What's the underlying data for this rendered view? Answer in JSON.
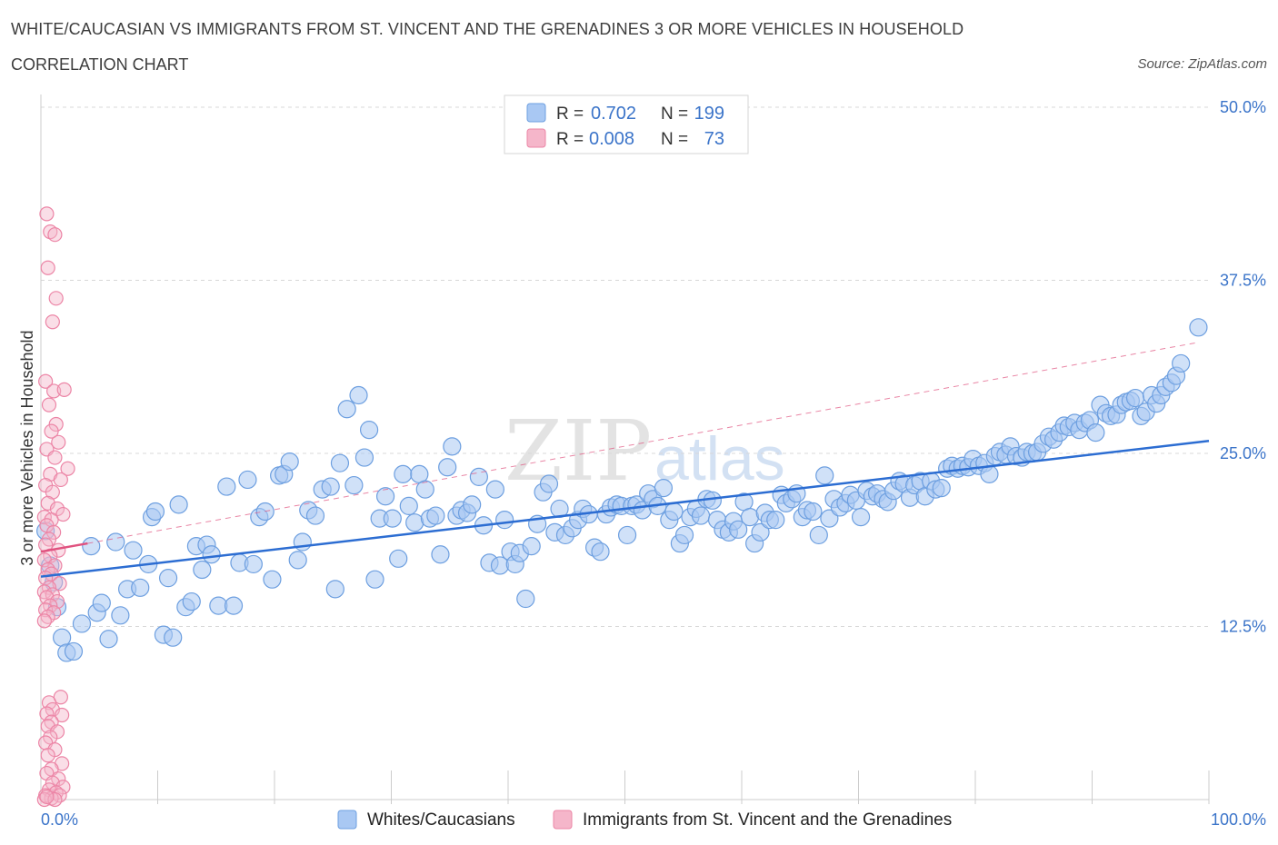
{
  "title": "WHITE/CAUCASIAN VS IMMIGRANTS FROM ST. VINCENT AND THE GRENADINES 3 OR MORE VEHICLES IN HOUSEHOLD",
  "subtitle": "CORRELATION CHART",
  "source": "Source: ZipAtlas.com",
  "watermark": {
    "zip": "ZIP",
    "atlas": "atlas"
  },
  "colors": {
    "blue_fill": "#a9c8f3",
    "blue_stroke": "#6d9fe0",
    "blue_line": "#2c6dd2",
    "pink_fill": "#f5b6ca",
    "pink_stroke": "#ec85a6",
    "pink_line": "#e0527f",
    "grid": "#d8d8d8",
    "tick_text": "#3b74c9"
  },
  "legend_top": {
    "rows": [
      {
        "r_label": "R =",
        "r_value": "0.702",
        "n_label": "N =",
        "n_value": "199"
      },
      {
        "r_label": "R =",
        "r_value": "0.008",
        "n_label": "N =",
        "n_value": "73"
      }
    ]
  },
  "chart_data": {
    "type": "scatter",
    "title": "WHITE/CAUCASIAN VS IMMIGRANTS FROM ST. VINCENT AND THE GRENADINES 3 OR MORE VEHICLES IN HOUSEHOLD",
    "xlabel": "",
    "ylabel": "3 or more Vehicles in Household",
    "xlim": [
      0,
      100
    ],
    "ylim": [
      0,
      50
    ],
    "x_tick_labels": [
      "0.0%",
      "100.0%"
    ],
    "y_ticks": [
      12.5,
      25.0,
      37.5,
      50.0
    ],
    "y_tick_labels": [
      "12.5%",
      "25.0%",
      "37.5%",
      "50.0%"
    ],
    "grid": "horizontal-dashed",
    "legend_position": "bottom-center",
    "series": [
      {
        "name": "Whites/Caucasians",
        "color": "#a9c8f3",
        "R": 0.702,
        "N": 199,
        "trend": {
          "x": [
            0,
            100
          ],
          "y": [
            16.1,
            25.9
          ]
        },
        "points": [
          [
            0.4,
            19.4
          ],
          [
            0.8,
            16.9
          ],
          [
            1.1,
            15.7
          ],
          [
            1.4,
            13.9
          ],
          [
            1.8,
            11.7
          ],
          [
            2.2,
            10.6
          ],
          [
            2.8,
            10.7
          ],
          [
            3.5,
            12.7
          ],
          [
            4.3,
            18.3
          ],
          [
            4.8,
            13.5
          ],
          [
            5.2,
            14.2
          ],
          [
            5.8,
            11.6
          ],
          [
            6.4,
            18.6
          ],
          [
            6.8,
            13.3
          ],
          [
            7.4,
            15.2
          ],
          [
            7.9,
            18.0
          ],
          [
            8.5,
            15.3
          ],
          [
            9.2,
            17.0
          ],
          [
            9.5,
            20.4
          ],
          [
            9.8,
            20.8
          ],
          [
            10.5,
            11.9
          ],
          [
            10.9,
            16.0
          ],
          [
            11.3,
            11.7
          ],
          [
            11.8,
            21.3
          ],
          [
            12.4,
            13.9
          ],
          [
            12.9,
            14.3
          ],
          [
            13.3,
            18.3
          ],
          [
            13.8,
            16.6
          ],
          [
            14.2,
            18.4
          ],
          [
            14.6,
            17.7
          ],
          [
            15.2,
            14.0
          ],
          [
            15.9,
            22.6
          ],
          [
            16.5,
            14.0
          ],
          [
            17.0,
            17.1
          ],
          [
            17.7,
            23.1
          ],
          [
            18.2,
            17.0
          ],
          [
            18.7,
            20.4
          ],
          [
            19.2,
            20.8
          ],
          [
            19.8,
            15.9
          ],
          [
            20.4,
            23.4
          ],
          [
            20.8,
            23.5
          ],
          [
            21.3,
            24.4
          ],
          [
            22.0,
            17.3
          ],
          [
            22.4,
            18.6
          ],
          [
            22.9,
            20.9
          ],
          [
            23.5,
            20.5
          ],
          [
            24.1,
            22.4
          ],
          [
            24.8,
            22.6
          ],
          [
            25.2,
            15.2
          ],
          [
            25.6,
            24.3
          ],
          [
            26.2,
            28.2
          ],
          [
            26.8,
            22.7
          ],
          [
            27.2,
            29.2
          ],
          [
            27.7,
            24.7
          ],
          [
            28.1,
            26.7
          ],
          [
            28.6,
            15.9
          ],
          [
            29.0,
            20.3
          ],
          [
            29.5,
            21.9
          ],
          [
            30.1,
            20.3
          ],
          [
            30.6,
            17.4
          ],
          [
            31.0,
            23.5
          ],
          [
            31.5,
            21.2
          ],
          [
            32.0,
            20.0
          ],
          [
            32.4,
            23.5
          ],
          [
            32.9,
            22.4
          ],
          [
            33.3,
            20.3
          ],
          [
            33.8,
            20.5
          ],
          [
            34.2,
            17.7
          ],
          [
            34.8,
            24.0
          ],
          [
            35.2,
            25.5
          ],
          [
            35.6,
            20.5
          ],
          [
            36.0,
            20.9
          ],
          [
            36.5,
            20.7
          ],
          [
            36.9,
            21.3
          ],
          [
            37.5,
            23.3
          ],
          [
            37.9,
            19.8
          ],
          [
            38.4,
            17.1
          ],
          [
            38.9,
            22.4
          ],
          [
            39.3,
            16.9
          ],
          [
            39.7,
            20.2
          ],
          [
            40.2,
            17.9
          ],
          [
            40.6,
            17.0
          ],
          [
            41.0,
            17.8
          ],
          [
            41.5,
            14.5
          ],
          [
            42.0,
            18.3
          ],
          [
            42.5,
            19.9
          ],
          [
            43.0,
            22.2
          ],
          [
            43.5,
            22.8
          ],
          [
            44.0,
            19.3
          ],
          [
            44.4,
            21.0
          ],
          [
            44.9,
            19.1
          ],
          [
            45.5,
            19.6
          ],
          [
            46.0,
            20.2
          ],
          [
            46.4,
            21.0
          ],
          [
            46.9,
            20.6
          ],
          [
            47.4,
            18.2
          ],
          [
            47.9,
            17.9
          ],
          [
            48.4,
            20.6
          ],
          [
            48.8,
            21.1
          ],
          [
            49.3,
            21.3
          ],
          [
            49.7,
            21.2
          ],
          [
            50.2,
            19.1
          ],
          [
            50.6,
            21.2
          ],
          [
            51.0,
            21.3
          ],
          [
            51.5,
            20.9
          ],
          [
            52.0,
            22.1
          ],
          [
            52.4,
            21.7
          ],
          [
            52.8,
            21.2
          ],
          [
            53.3,
            22.5
          ],
          [
            53.8,
            20.2
          ],
          [
            54.2,
            20.8
          ],
          [
            54.7,
            18.5
          ],
          [
            55.1,
            19.1
          ],
          [
            55.6,
            20.4
          ],
          [
            56.1,
            21.0
          ],
          [
            56.5,
            20.5
          ],
          [
            57.0,
            21.7
          ],
          [
            57.5,
            21.6
          ],
          [
            57.9,
            20.2
          ],
          [
            58.4,
            19.5
          ],
          [
            58.9,
            19.3
          ],
          [
            59.3,
            20.1
          ],
          [
            59.7,
            19.5
          ],
          [
            60.2,
            21.5
          ],
          [
            60.7,
            20.4
          ],
          [
            61.1,
            18.5
          ],
          [
            61.6,
            19.3
          ],
          [
            62.0,
            20.7
          ],
          [
            62.4,
            20.2
          ],
          [
            62.9,
            20.2
          ],
          [
            63.4,
            22.0
          ],
          [
            63.8,
            21.4
          ],
          [
            64.3,
            21.7
          ],
          [
            64.7,
            22.1
          ],
          [
            65.2,
            20.4
          ],
          [
            65.6,
            20.9
          ],
          [
            66.1,
            20.8
          ],
          [
            66.6,
            19.1
          ],
          [
            67.1,
            23.4
          ],
          [
            67.5,
            20.3
          ],
          [
            67.9,
            21.7
          ],
          [
            68.4,
            21.1
          ],
          [
            68.9,
            21.4
          ],
          [
            69.3,
            22.0
          ],
          [
            69.8,
            21.6
          ],
          [
            70.2,
            20.4
          ],
          [
            70.7,
            22.3
          ],
          [
            71.2,
            21.9
          ],
          [
            71.6,
            22.1
          ],
          [
            72.1,
            21.7
          ],
          [
            72.5,
            21.5
          ],
          [
            73.0,
            22.3
          ],
          [
            73.5,
            23.0
          ],
          [
            73.9,
            22.8
          ],
          [
            74.4,
            21.8
          ],
          [
            74.8,
            22.7
          ],
          [
            75.3,
            23.0
          ],
          [
            75.7,
            21.9
          ],
          [
            76.2,
            23.0
          ],
          [
            76.6,
            22.4
          ],
          [
            77.1,
            22.5
          ],
          [
            77.6,
            23.9
          ],
          [
            78.0,
            24.1
          ],
          [
            78.5,
            23.9
          ],
          [
            78.9,
            24.1
          ],
          [
            79.4,
            24.0
          ],
          [
            79.8,
            24.6
          ],
          [
            80.3,
            24.1
          ],
          [
            80.8,
            24.3
          ],
          [
            81.2,
            23.5
          ],
          [
            81.7,
            24.8
          ],
          [
            82.1,
            25.1
          ],
          [
            82.6,
            24.9
          ],
          [
            83.0,
            25.5
          ],
          [
            83.5,
            24.8
          ],
          [
            84.0,
            24.7
          ],
          [
            84.4,
            25.1
          ],
          [
            84.9,
            25.0
          ],
          [
            85.3,
            25.1
          ],
          [
            85.8,
            25.7
          ],
          [
            86.3,
            26.2
          ],
          [
            86.7,
            26.0
          ],
          [
            87.2,
            26.5
          ],
          [
            87.6,
            27.0
          ],
          [
            88.0,
            26.9
          ],
          [
            88.5,
            27.2
          ],
          [
            88.9,
            26.7
          ],
          [
            89.4,
            27.2
          ],
          [
            89.8,
            27.4
          ],
          [
            90.3,
            26.5
          ],
          [
            90.7,
            28.5
          ],
          [
            91.2,
            27.9
          ],
          [
            91.6,
            27.7
          ],
          [
            92.1,
            27.8
          ],
          [
            92.5,
            28.5
          ],
          [
            92.9,
            28.7
          ],
          [
            93.3,
            28.8
          ],
          [
            93.7,
            29.0
          ],
          [
            94.2,
            27.7
          ],
          [
            94.6,
            28.0
          ],
          [
            95.1,
            29.2
          ],
          [
            95.5,
            28.6
          ],
          [
            95.9,
            29.2
          ],
          [
            96.3,
            29.8
          ],
          [
            96.8,
            30.1
          ],
          [
            97.2,
            30.6
          ],
          [
            97.6,
            31.5
          ],
          [
            99.1,
            34.1
          ]
        ]
      },
      {
        "name": "Immigrants from St. Vincent and the Grenadines",
        "color": "#f5b6ca",
        "R": 0.008,
        "N": 73,
        "trend": {
          "x": [
            0,
            4
          ],
          "y": [
            17.9,
            18.5
          ]
        },
        "points": [
          [
            0.5,
            42.3
          ],
          [
            0.8,
            41.0
          ],
          [
            1.2,
            40.8
          ],
          [
            0.6,
            38.4
          ],
          [
            1.3,
            36.2
          ],
          [
            1.0,
            34.5
          ],
          [
            0.4,
            30.2
          ],
          [
            1.1,
            29.5
          ],
          [
            2.0,
            29.6
          ],
          [
            0.7,
            28.5
          ],
          [
            1.3,
            27.1
          ],
          [
            0.9,
            26.6
          ],
          [
            1.5,
            25.8
          ],
          [
            0.5,
            25.3
          ],
          [
            1.2,
            24.7
          ],
          [
            2.3,
            23.9
          ],
          [
            0.8,
            23.5
          ],
          [
            1.7,
            23.1
          ],
          [
            0.4,
            22.7
          ],
          [
            1.0,
            22.2
          ],
          [
            0.6,
            21.4
          ],
          [
            1.4,
            21.0
          ],
          [
            1.9,
            20.6
          ],
          [
            0.3,
            20.4
          ],
          [
            0.9,
            20.2
          ],
          [
            0.5,
            19.8
          ],
          [
            1.1,
            19.3
          ],
          [
            0.7,
            18.8
          ],
          [
            0.4,
            18.4
          ],
          [
            1.5,
            18.0
          ],
          [
            0.8,
            17.6
          ],
          [
            0.3,
            17.3
          ],
          [
            1.2,
            16.9
          ],
          [
            0.6,
            16.6
          ],
          [
            0.9,
            16.3
          ],
          [
            0.4,
            16.0
          ],
          [
            1.6,
            15.6
          ],
          [
            0.7,
            15.3
          ],
          [
            0.3,
            15.0
          ],
          [
            1.0,
            14.8
          ],
          [
            0.5,
            14.6
          ],
          [
            1.4,
            14.3
          ],
          [
            0.8,
            14.0
          ],
          [
            0.4,
            13.7
          ],
          [
            1.1,
            13.5
          ],
          [
            0.6,
            13.2
          ],
          [
            0.3,
            12.9
          ],
          [
            1.7,
            7.4
          ],
          [
            0.7,
            7.0
          ],
          [
            1.0,
            6.5
          ],
          [
            0.5,
            6.2
          ],
          [
            1.8,
            6.1
          ],
          [
            0.9,
            5.6
          ],
          [
            0.6,
            5.3
          ],
          [
            1.4,
            4.9
          ],
          [
            0.8,
            4.5
          ],
          [
            0.4,
            4.1
          ],
          [
            1.2,
            3.6
          ],
          [
            0.6,
            3.2
          ],
          [
            1.8,
            2.6
          ],
          [
            0.9,
            2.2
          ],
          [
            0.5,
            1.9
          ],
          [
            1.5,
            1.5
          ],
          [
            1.0,
            1.2
          ],
          [
            1.9,
            0.9
          ],
          [
            0.7,
            0.7
          ],
          [
            1.3,
            0.5
          ],
          [
            0.4,
            0.3
          ],
          [
            1.6,
            0.3
          ],
          [
            0.9,
            0.1
          ],
          [
            0.3,
            0.0
          ],
          [
            1.2,
            0.0
          ],
          [
            0.5,
            0.2
          ]
        ]
      }
    ]
  }
}
